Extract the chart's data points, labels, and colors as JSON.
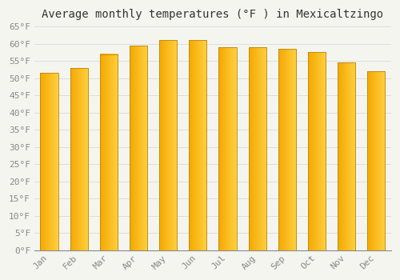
{
  "title": "Average monthly temperatures (°F ) in Mexicaltzingo",
  "months": [
    "Jan",
    "Feb",
    "Mar",
    "Apr",
    "May",
    "Jun",
    "Jul",
    "Aug",
    "Sep",
    "Oct",
    "Nov",
    "Dec"
  ],
  "values": [
    51.5,
    53.0,
    57.0,
    59.5,
    61.0,
    61.0,
    59.0,
    59.0,
    58.5,
    57.5,
    54.5,
    52.0
  ],
  "bar_color_left": "#F5A800",
  "bar_color_right": "#FFD040",
  "bar_edge_color": "#B8860B",
  "background_color": "#F5F5F0",
  "grid_color": "#DDDDDD",
  "ylim": [
    0,
    65
  ],
  "yticks": [
    0,
    5,
    10,
    15,
    20,
    25,
    30,
    35,
    40,
    45,
    50,
    55,
    60,
    65
  ],
  "title_fontsize": 10,
  "tick_fontsize": 8,
  "tick_font_color": "#888888",
  "bar_width": 0.6
}
